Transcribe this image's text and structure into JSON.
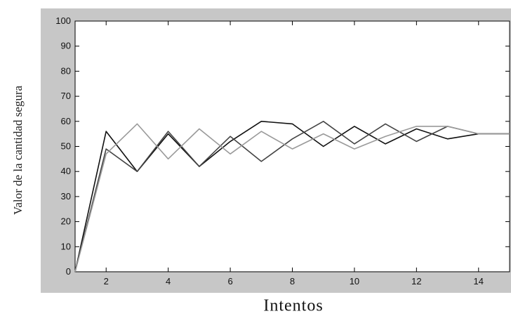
{
  "chart_data": {
    "type": "line",
    "title": "",
    "xlabel": "Intentos",
    "ylabel": "Valor de la cantidad segura",
    "xlim": [
      1,
      15
    ],
    "ylim": [
      0,
      100
    ],
    "xticks": [
      2,
      4,
      6,
      8,
      10,
      12,
      14
    ],
    "yticks": [
      0,
      10,
      20,
      30,
      40,
      50,
      60,
      70,
      80,
      90,
      100
    ],
    "grid": false,
    "legend": "none",
    "series": [
      {
        "color": "#111111",
        "style": "solid",
        "x": [
          1,
          2,
          3,
          4,
          5,
          6,
          7,
          8,
          9,
          10,
          11,
          12,
          13,
          14,
          15
        ],
        "y": [
          0,
          56,
          40,
          55,
          42,
          52,
          60,
          59,
          50,
          58,
          51,
          57,
          53,
          55,
          55
        ]
      },
      {
        "color": "#444444",
        "style": "solid",
        "x": [
          1,
          2,
          3,
          4,
          5,
          6,
          7,
          8,
          9,
          10,
          11,
          12,
          13,
          14,
          15
        ],
        "y": [
          0,
          49,
          40,
          56,
          42,
          54,
          44,
          53,
          60,
          51,
          59,
          52,
          58,
          55,
          55
        ]
      },
      {
        "color": "#9a9a9a",
        "style": "solid",
        "x": [
          1,
          2,
          3,
          4,
          5,
          6,
          7,
          8,
          9,
          10,
          11,
          12,
          13,
          14,
          15
        ],
        "y": [
          0,
          47,
          59,
          45,
          57,
          47,
          56,
          49,
          55,
          49,
          54,
          58,
          58,
          55,
          55
        ]
      }
    ]
  }
}
